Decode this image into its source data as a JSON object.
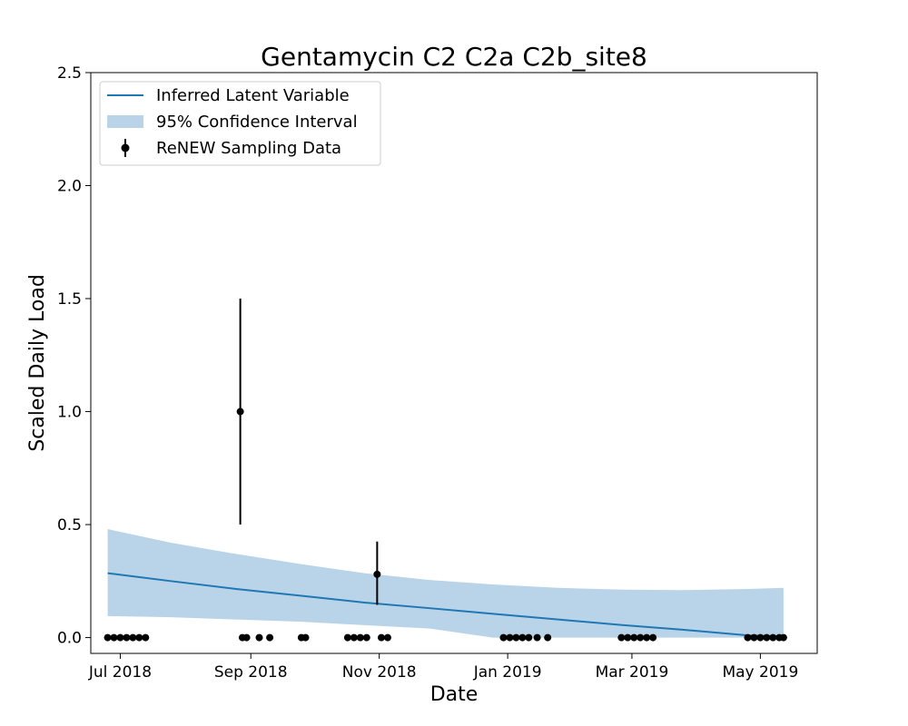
{
  "chart_data": {
    "type": "line",
    "title": "Gentamycin C2 C2a C2b_site8",
    "xlabel": "Date",
    "ylabel": "Scaled Daily Load",
    "xlim": [
      "2018-06-17",
      "2019-05-28"
    ],
    "ylim": [
      -0.07,
      2.5
    ],
    "x_ticks": [
      "2018-07-01",
      "2018-09-01",
      "2018-11-01",
      "2019-01-01",
      "2019-03-01",
      "2019-05-01"
    ],
    "x_tick_labels": [
      "Jul 2018",
      "Sep 2018",
      "Nov 2018",
      "Jan 2019",
      "Mar 2019",
      "May 2019"
    ],
    "y_ticks": [
      0.0,
      0.5,
      1.0,
      1.5,
      2.0,
      2.5
    ],
    "y_tick_labels": [
      "0.0",
      "0.5",
      "1.0",
      "1.5",
      "2.0",
      "2.5"
    ],
    "grid": false,
    "legend_position": "top-left",
    "colors": {
      "line": "#1f77b4",
      "band": "#b9d4e8",
      "points": "#000000"
    },
    "series": [
      {
        "name": "Inferred Latent Variable",
        "kind": "line",
        "x": [
          "2018-06-25",
          "2018-07-25",
          "2018-08-25",
          "2018-09-25",
          "2018-10-25",
          "2018-11-25",
          "2018-12-25",
          "2019-01-25",
          "2019-02-25",
          "2019-03-25",
          "2019-04-25",
          "2019-05-12"
        ],
        "y": [
          0.285,
          0.25,
          0.215,
          0.185,
          0.155,
          0.13,
          0.105,
          0.08,
          0.055,
          0.035,
          0.01,
          0.005
        ]
      },
      {
        "name": "95% Confidence Interval",
        "kind": "band",
        "x": [
          "2018-06-25",
          "2018-07-25",
          "2018-08-25",
          "2018-09-25",
          "2018-10-25",
          "2018-11-25",
          "2018-12-25",
          "2019-01-25",
          "2019-02-25",
          "2019-03-25",
          "2019-04-25",
          "2019-05-12"
        ],
        "lower": [
          0.095,
          0.09,
          0.08,
          0.07,
          0.055,
          0.04,
          0.0,
          0.0,
          0.0,
          0.0,
          0.0,
          0.0
        ],
        "upper": [
          0.48,
          0.42,
          0.37,
          0.325,
          0.285,
          0.255,
          0.235,
          0.22,
          0.212,
          0.21,
          0.215,
          0.22
        ]
      },
      {
        "name": "ReNEW Sampling Data",
        "kind": "errorbar",
        "points": [
          {
            "x": "2018-06-25",
            "y": 0.0
          },
          {
            "x": "2018-06-28",
            "y": 0.0
          },
          {
            "x": "2018-07-01",
            "y": 0.0
          },
          {
            "x": "2018-07-04",
            "y": 0.0
          },
          {
            "x": "2018-07-07",
            "y": 0.0
          },
          {
            "x": "2018-07-10",
            "y": 0.0
          },
          {
            "x": "2018-07-13",
            "y": 0.0
          },
          {
            "x": "2018-08-27",
            "y": 1.0,
            "err_low": 0.5,
            "err_high": 1.5
          },
          {
            "x": "2018-08-28",
            "y": 0.0
          },
          {
            "x": "2018-08-30",
            "y": 0.0
          },
          {
            "x": "2018-09-05",
            "y": 0.0
          },
          {
            "x": "2018-09-10",
            "y": 0.0
          },
          {
            "x": "2018-09-25",
            "y": 0.0
          },
          {
            "x": "2018-09-27",
            "y": 0.0
          },
          {
            "x": "2018-10-17",
            "y": 0.0
          },
          {
            "x": "2018-10-20",
            "y": 0.0
          },
          {
            "x": "2018-10-23",
            "y": 0.0
          },
          {
            "x": "2018-10-26",
            "y": 0.0
          },
          {
            "x": "2018-10-31",
            "y": 0.28,
            "err_low": 0.145,
            "err_high": 0.425
          },
          {
            "x": "2018-11-02",
            "y": 0.0
          },
          {
            "x": "2018-11-05",
            "y": 0.0
          },
          {
            "x": "2018-12-30",
            "y": 0.0
          },
          {
            "x": "2019-01-02",
            "y": 0.0
          },
          {
            "x": "2019-01-05",
            "y": 0.0
          },
          {
            "x": "2019-01-08",
            "y": 0.0
          },
          {
            "x": "2019-01-11",
            "y": 0.0
          },
          {
            "x": "2019-01-15",
            "y": 0.0
          },
          {
            "x": "2019-01-20",
            "y": 0.0
          },
          {
            "x": "2019-02-24",
            "y": 0.0
          },
          {
            "x": "2019-02-27",
            "y": 0.0
          },
          {
            "x": "2019-03-02",
            "y": 0.0
          },
          {
            "x": "2019-03-05",
            "y": 0.0
          },
          {
            "x": "2019-03-08",
            "y": 0.0
          },
          {
            "x": "2019-03-11",
            "y": 0.0
          },
          {
            "x": "2019-04-25",
            "y": 0.0
          },
          {
            "x": "2019-04-28",
            "y": 0.0
          },
          {
            "x": "2019-05-01",
            "y": 0.0
          },
          {
            "x": "2019-05-04",
            "y": 0.0
          },
          {
            "x": "2019-05-07",
            "y": 0.0
          },
          {
            "x": "2019-05-10",
            "y": 0.0
          },
          {
            "x": "2019-05-12",
            "y": 0.0
          }
        ]
      }
    ]
  }
}
